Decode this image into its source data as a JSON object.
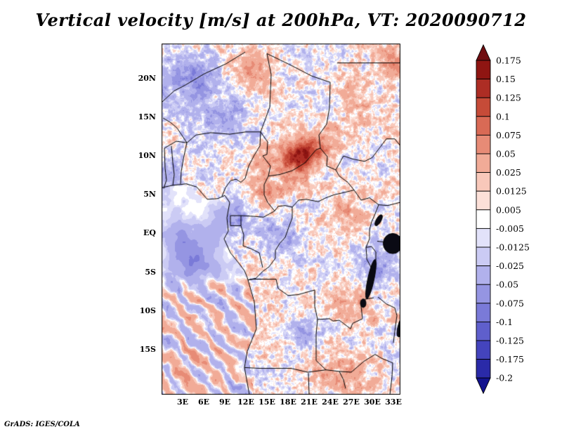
{
  "title": "Vertical velocity [m/s] at 200hPa, VT: 2020090712",
  "credit": "GrADS: IGES/COLA",
  "chart_data": {
    "type": "heatmap",
    "title": "Vertical velocity [m/s] at 200hPa, VT: 2020090712",
    "variable": "Vertical velocity",
    "units": "m/s",
    "pressure_level": "200hPa",
    "valid_time": "2020090712",
    "lon_range": [
      0,
      34
    ],
    "lat_range": [
      -20.8,
      24.5
    ],
    "x_ticks": [
      "3E",
      "6E",
      "9E",
      "12E",
      "15E",
      "18E",
      "21E",
      "24E",
      "27E",
      "30E",
      "33E"
    ],
    "x_tick_lons": [
      3,
      6,
      9,
      12,
      15,
      18,
      21,
      24,
      27,
      30,
      33
    ],
    "y_ticks": [
      "20N",
      "15N",
      "10N",
      "5N",
      "EQ",
      "5S",
      "10S",
      "15S"
    ],
    "y_tick_lats": [
      20,
      15,
      10,
      5,
      0,
      -5,
      -10,
      -15
    ],
    "notes": "Noisy small-scale field of rising (red) and sinking (blue) cells over central Africa; pronounced dark-red updraft cluster near 20E,10N; smooth blue subsidence over the Gulf of Guinea; diagonal red/blue wave bands over the SE Atlantic; blue-dominated NW corner.",
    "colorbar": {
      "levels": [
        0.175,
        0.15,
        0.125,
        0.1,
        0.075,
        0.05,
        0.025,
        0.0125,
        0.005,
        -0.005,
        -0.0125,
        -0.025,
        -0.05,
        -0.075,
        -0.1,
        -0.125,
        -0.175,
        -0.2
      ],
      "labels": [
        "0.175",
        "0.15",
        "0.125",
        "0.1",
        "0.075",
        "0.05",
        "0.025",
        "0.0125",
        "0.005",
        "-0.005",
        "-0.0125",
        "-0.025",
        "-0.05",
        "-0.075",
        "-0.1",
        "-0.125",
        "-0.175",
        "-0.2"
      ],
      "colors": [
        "#6f0d10",
        "#8f1512",
        "#ad2d24",
        "#c64b38",
        "#d96a55",
        "#e78b76",
        "#f1ab97",
        "#f8c8ba",
        "#fce0d8",
        "#ffffff",
        "#e2e2fa",
        "#cbcbf4",
        "#b1b1ec",
        "#9595e2",
        "#7a7ad8",
        "#5f5fcc",
        "#4444bd",
        "#2a2aa8",
        "#12128e"
      ]
    },
    "approx_features": [
      {
        "lon": 20.0,
        "lat": 10.0,
        "sx": 2.2,
        "sy": 1.8,
        "amp": 0.13
      },
      {
        "lon": 17.5,
        "lat": 8.5,
        "sx": 4.0,
        "sy": 2.6,
        "amp": 0.05
      },
      {
        "lon": 23.0,
        "lat": 12.0,
        "sx": 3.0,
        "sy": 2.2,
        "amp": 0.045
      },
      {
        "lon": 28.0,
        "lat": 17.0,
        "sx": 3.5,
        "sy": 3.0,
        "amp": 0.035
      },
      {
        "lon": 33.0,
        "lat": 22.0,
        "sx": 2.5,
        "sy": 2.0,
        "amp": 0.05
      },
      {
        "lon": 13.0,
        "lat": 21.0,
        "sx": 3.0,
        "sy": 2.5,
        "amp": 0.04
      },
      {
        "lon": 27.0,
        "lat": 3.0,
        "sx": 3.0,
        "sy": 2.5,
        "amp": 0.035
      },
      {
        "lon": 27.0,
        "lat": -9.0,
        "sx": 3.0,
        "sy": 2.5,
        "amp": 0.045
      },
      {
        "lon": 25.0,
        "lat": -18.0,
        "sx": 5.0,
        "sy": 2.5,
        "amp": 0.04
      },
      {
        "lon": 15.0,
        "lat": 5.0,
        "sx": 2.0,
        "sy": 1.5,
        "amp": 0.04
      },
      {
        "lon": 4.0,
        "lat": 20.0,
        "sx": 4.5,
        "sy": 3.5,
        "amp": -0.055
      },
      {
        "lon": 9.0,
        "lat": 15.0,
        "sx": 3.5,
        "sy": 2.5,
        "amp": -0.04
      },
      {
        "lon": 31.0,
        "lat": -4.0,
        "sx": 2.5,
        "sy": 3.0,
        "amp": -0.05
      },
      {
        "lon": 10.0,
        "lat": 2.0,
        "sx": 3.0,
        "sy": 2.5,
        "amp": -0.05
      },
      {
        "lon": 4.0,
        "lat": -2.5,
        "sx": 3.5,
        "sy": 3.2,
        "amp": -0.075
      },
      {
        "lon": 17.0,
        "lat": -1.0,
        "sx": 3.0,
        "sy": 2.5,
        "amp": -0.04
      },
      {
        "lon": 20.0,
        "lat": -13.0,
        "sx": 2.5,
        "sy": 2.0,
        "amp": -0.035
      },
      {
        "lon": 0.5,
        "lat": 8.0,
        "sx": 2.5,
        "sy": 2.5,
        "amp": -0.04
      }
    ],
    "coastline": [
      [
        0,
        5.9
      ],
      [
        1.5,
        6.2
      ],
      [
        3.5,
        6.4
      ],
      [
        5,
        6.0
      ],
      [
        6.5,
        4.4
      ],
      [
        8,
        4.5
      ],
      [
        9,
        4.9
      ],
      [
        9.7,
        4.0
      ],
      [
        9.3,
        2.0
      ],
      [
        9.5,
        0.3
      ],
      [
        8.9,
        -0.7
      ],
      [
        9.8,
        -2.5
      ],
      [
        10.7,
        -3.5
      ],
      [
        11.8,
        -4.8
      ],
      [
        12.2,
        -5.7
      ],
      [
        13.2,
        -8.8
      ],
      [
        13.5,
        -12.3
      ],
      [
        12.2,
        -15.2
      ],
      [
        11.8,
        -17.3
      ],
      [
        12.5,
        -20.8
      ]
    ],
    "borders": [
      [
        [
          0.3,
          5.8
        ],
        [
          0.7,
          6.9
        ],
        [
          0.5,
          8.4
        ],
        [
          0.4,
          11.0
        ]
      ],
      [
        [
          1.6,
          6.2
        ],
        [
          1.8,
          7.6
        ],
        [
          1.6,
          9.1
        ],
        [
          1.4,
          11.3
        ]
      ],
      [
        [
          2.7,
          6.4
        ],
        [
          2.8,
          8.0
        ],
        [
          3.1,
          9.6
        ],
        [
          3.6,
          11.7
        ]
      ],
      [
        [
          0.4,
          11.0
        ],
        [
          2.1,
          11.9
        ],
        [
          3.6,
          11.7
        ],
        [
          4.9,
          12.7
        ],
        [
          7.0,
          13.0
        ],
        [
          9.7,
          12.8
        ],
        [
          12.0,
          13.1
        ],
        [
          14.1,
          13.1
        ]
      ],
      [
        [
          8.6,
          4.8
        ],
        [
          9.1,
          5.9
        ],
        [
          9.8,
          6.8
        ],
        [
          10.6,
          7.0
        ],
        [
          11.3,
          6.6
        ],
        [
          11.9,
          7.1
        ],
        [
          12.4,
          8.7
        ],
        [
          13.2,
          10.1
        ],
        [
          14.0,
          11.3
        ],
        [
          14.1,
          13.1
        ]
      ],
      [
        [
          14.1,
          13.1
        ],
        [
          15.4,
          16.3
        ],
        [
          15.6,
          20.5
        ],
        [
          15.0,
          23.2
        ]
      ],
      [
        [
          15.0,
          23.2
        ],
        [
          18.2,
          21.8
        ],
        [
          21.4,
          20.3
        ],
        [
          24.0,
          19.5
        ]
      ],
      [
        [
          24.0,
          19.5
        ],
        [
          23.9,
          16.2
        ],
        [
          23.5,
          14.1
        ],
        [
          22.4,
          12.7
        ],
        [
          22.6,
          11.0
        ]
      ],
      [
        [
          3.3,
          19.1
        ],
        [
          6.1,
          20.6
        ],
        [
          9.2,
          21.9
        ],
        [
          11.9,
          23.4
        ]
      ],
      [
        [
          0.0,
          16.9
        ],
        [
          1.8,
          18.4
        ],
        [
          3.3,
          19.1
        ]
      ],
      [
        [
          0.2,
          14.9
        ],
        [
          1.3,
          14.3
        ],
        [
          2.2,
          13.6
        ],
        [
          3.6,
          11.7
        ]
      ],
      [
        [
          14.1,
          13.1
        ],
        [
          15.1,
          11.8
        ],
        [
          15.0,
          10.2
        ],
        [
          14.4,
          10.0
        ],
        [
          15.5,
          8.7
        ],
        [
          15.2,
          7.4
        ]
      ],
      [
        [
          15.2,
          7.4
        ],
        [
          16.8,
          7.6
        ],
        [
          18.6,
          8.1
        ],
        [
          20.4,
          9.1
        ],
        [
          22.0,
          10.8
        ],
        [
          22.6,
          11.0
        ]
      ],
      [
        [
          22.6,
          11.0
        ],
        [
          23.6,
          9.9
        ],
        [
          23.5,
          8.7
        ],
        [
          24.8,
          8.2
        ],
        [
          25.3,
          7.4
        ],
        [
          26.5,
          6.6
        ],
        [
          27.4,
          5.6
        ]
      ],
      [
        [
          9.8,
          2.3
        ],
        [
          11.3,
          2.3
        ],
        [
          13.2,
          2.2
        ],
        [
          14.5,
          2.1
        ],
        [
          16.1,
          2.9
        ]
      ],
      [
        [
          15.2,
          7.4
        ],
        [
          14.6,
          6.3
        ],
        [
          14.6,
          5.0
        ],
        [
          15.1,
          4.0
        ],
        [
          16.1,
          2.9
        ]
      ],
      [
        [
          9.8,
          2.3
        ],
        [
          9.8,
          1.0
        ],
        [
          11.3,
          1.0
        ],
        [
          11.3,
          2.3
        ]
      ],
      [
        [
          11.3,
          1.0
        ],
        [
          11.7,
          -0.2
        ],
        [
          11.6,
          -1.6
        ],
        [
          12.8,
          -2.0
        ],
        [
          13.9,
          -2.5
        ],
        [
          14.4,
          -4.4
        ]
      ],
      [
        [
          16.1,
          2.9
        ],
        [
          16.6,
          3.5
        ],
        [
          17.6,
          3.6
        ],
        [
          18.6,
          3.4
        ],
        [
          18.6,
          2.0
        ],
        [
          18.1,
          0.8
        ],
        [
          17.6,
          -0.5
        ],
        [
          16.8,
          -1.3
        ],
        [
          16.2,
          -2.2
        ],
        [
          16.2,
          -3.2
        ],
        [
          15.3,
          -4.3
        ],
        [
          14.4,
          -4.9
        ],
        [
          13.4,
          -5.8
        ],
        [
          12.3,
          -6.0
        ]
      ],
      [
        [
          18.6,
          3.4
        ],
        [
          19.5,
          4.3
        ],
        [
          20.6,
          4.4
        ],
        [
          22.3,
          4.1
        ],
        [
          23.4,
          4.6
        ],
        [
          24.6,
          5.0
        ],
        [
          25.6,
          5.2
        ],
        [
          27.4,
          5.6
        ]
      ],
      [
        [
          27.4,
          5.6
        ],
        [
          28.4,
          4.3
        ],
        [
          29.6,
          4.6
        ],
        [
          30.9,
          3.7
        ],
        [
          32.2,
          3.6
        ],
        [
          33.9,
          4.0
        ]
      ],
      [
        [
          30.9,
          3.7
        ],
        [
          30.3,
          2.3
        ],
        [
          29.9,
          1.5
        ],
        [
          29.6,
          0.5
        ],
        [
          29.6,
          -0.7
        ],
        [
          29.1,
          -1.8
        ],
        [
          29.2,
          -2.9
        ],
        [
          29.2,
          -3.3
        ]
      ],
      [
        [
          29.1,
          -1.8
        ],
        [
          29.9,
          -1.7
        ],
        [
          30.5,
          -2.4
        ],
        [
          30.5,
          -3.4
        ],
        [
          29.9,
          -4.5
        ],
        [
          29.2,
          -3.3
        ]
      ],
      [
        [
          30.7,
          -1.0
        ],
        [
          31.6,
          -1.1
        ],
        [
          32.2,
          -1.2
        ]
      ],
      [
        [
          30.2,
          -8.3
        ],
        [
          28.9,
          -8.5
        ],
        [
          28.4,
          -9.4
        ],
        [
          28.6,
          -11.0
        ],
        [
          27.2,
          -11.6
        ],
        [
          26.9,
          -12.3
        ],
        [
          25.3,
          -11.2
        ],
        [
          24.4,
          -11.3
        ],
        [
          23.9,
          -11.0
        ],
        [
          22.2,
          -11.1
        ],
        [
          22.0,
          -13.0
        ],
        [
          22.0,
          -16.4
        ],
        [
          23.4,
          -17.6
        ]
      ],
      [
        [
          12.3,
          -6.0
        ],
        [
          13.1,
          -5.9
        ],
        [
          14.0,
          -5.9
        ],
        [
          16.3,
          -5.9
        ],
        [
          16.6,
          -7.1
        ],
        [
          18.0,
          -8.0
        ],
        [
          19.4,
          -7.9
        ],
        [
          21.8,
          -7.3
        ],
        [
          21.8,
          -9.4
        ],
        [
          22.2,
          -11.1
        ]
      ],
      [
        [
          30.8,
          -8.2
        ],
        [
          32.0,
          -9.1
        ],
        [
          33.2,
          -9.6
        ],
        [
          33.5,
          -10.6
        ],
        [
          33.2,
          -12.6
        ],
        [
          33.0,
          -14.1
        ]
      ],
      [
        [
          25.3,
          -17.8
        ],
        [
          27.0,
          -17.9
        ],
        [
          28.8,
          -16.5
        ],
        [
          30.4,
          -15.6
        ],
        [
          31.3,
          -16.1
        ],
        [
          32.9,
          -16.7
        ]
      ],
      [
        [
          11.8,
          -17.3
        ],
        [
          13.9,
          -17.4
        ],
        [
          18.4,
          -17.4
        ],
        [
          20.8,
          -17.9
        ],
        [
          23.4,
          -17.6
        ],
        [
          25.3,
          -17.8
        ]
      ],
      [
        [
          20.9,
          -18.0
        ],
        [
          21.0,
          -20.8
        ]
      ],
      [
        [
          25.3,
          -17.8
        ],
        [
          25.9,
          -18.9
        ],
        [
          26.2,
          -20.0
        ]
      ],
      [
        [
          32.9,
          -16.7
        ],
        [
          32.8,
          -18.5
        ],
        [
          32.5,
          -20.8
        ]
      ],
      [
        [
          24.8,
          8.2
        ],
        [
          25.9,
          10.0
        ],
        [
          27.2,
          9.6
        ],
        [
          28.9,
          9.3
        ],
        [
          30.0,
          9.8
        ],
        [
          32.0,
          12.2
        ],
        [
          33.2,
          12.2
        ],
        [
          34.0,
          11.3
        ]
      ],
      [
        [
          25.0,
          22.0
        ],
        [
          34.0,
          22.0
        ]
      ]
    ],
    "lakes": [
      {
        "lon": 32.9,
        "lat": -1.3,
        "rx": 1.35,
        "ry": 1.3,
        "rot": 0
      },
      {
        "lon": 29.8,
        "lat": -5.9,
        "rx": 0.45,
        "ry": 2.6,
        "rot": 12
      },
      {
        "lon": 30.9,
        "lat": 1.7,
        "rx": 0.35,
        "ry": 0.8,
        "rot": 30
      },
      {
        "lon": 28.7,
        "lat": -9.0,
        "rx": 0.4,
        "ry": 0.55,
        "rot": 0
      },
      {
        "lon": 34.1,
        "lat": -12.0,
        "rx": 0.45,
        "ry": 1.4,
        "rot": 15
      }
    ]
  }
}
